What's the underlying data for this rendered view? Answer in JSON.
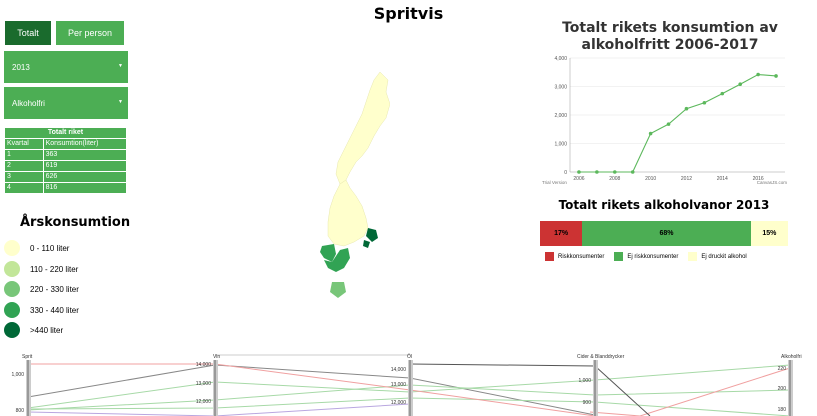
{
  "app_title": "Spritvis",
  "tabs": {
    "total": "Totalt",
    "per_person": "Per person"
  },
  "selects": {
    "year": "2013",
    "type": "Alkoholfri"
  },
  "table": {
    "caption": "Totalt riket",
    "headers": [
      "Kvartal",
      "Konsumtion(liter)"
    ],
    "rows": [
      [
        "1",
        "363"
      ],
      [
        "2",
        "619"
      ],
      [
        "3",
        "626"
      ],
      [
        "4",
        "816"
      ]
    ]
  },
  "legend": {
    "title": "Årskonsumtion",
    "items": [
      {
        "label": "0 - 110 liter",
        "color": "#ffffcc"
      },
      {
        "label": "110 - 220 liter",
        "color": "#c2e699"
      },
      {
        "label": "220 - 330 liter",
        "color": "#78c679"
      },
      {
        "label": "330 - 440 liter",
        "color": "#31a354"
      },
      {
        "label": ">440 liter",
        "color": "#006837"
      }
    ]
  },
  "line_chart": {
    "title_line1": "Totalt rikets konsumtion av",
    "title_line2": "alkoholfritt 2006-2017",
    "watermark_left": "Trial Version",
    "watermark_right": "CanvasJS.com",
    "color": "#5cb85c"
  },
  "bar_chart": {
    "title": "Totalt rikets alkoholvanor 2013",
    "segments": [
      {
        "label": "17%",
        "value": 17,
        "color": "#cc3333"
      },
      {
        "label": "68%",
        "value": 68,
        "color": "#4cae54"
      },
      {
        "label": "15%",
        "value": 15,
        "color": "#ffffcc"
      }
    ],
    "legend": [
      "Riskkonsumenter",
      "Ej riskkonsumenter",
      "Ej druckit alkohol"
    ]
  },
  "parallel": {
    "axes": [
      "Sprit",
      "Vin",
      "Öl",
      "Cider & Blanddrycker",
      "Alkoholfri"
    ],
    "ticks": [
      [
        "1,000",
        "800"
      ],
      [
        "14,000",
        "13,000",
        "12,000"
      ],
      [
        "14,000",
        "13,000",
        "12,000"
      ],
      [
        "1,000",
        "900"
      ],
      [
        "220",
        "200",
        "180"
      ]
    ]
  },
  "chart_data": {
    "type": "line",
    "title": "Totalt rikets konsumtion av alkoholfritt 2006-2017",
    "x": [
      2006,
      2007,
      2008,
      2009,
      2010,
      2011,
      2012,
      2013,
      2014,
      2015,
      2016,
      2017
    ],
    "series": [
      {
        "values": [
          0,
          0,
          0,
          0,
          1350,
          1680,
          2220,
          2430,
          2750,
          3080,
          3420,
          3370
        ]
      }
    ],
    "xticks": [
      "2006",
      "2008",
      "2010",
      "2012",
      "2014",
      "2016"
    ],
    "yticks": [
      "0",
      "1,000",
      "2,000",
      "3,000",
      "4,000"
    ],
    "ylim": [
      0,
      4000
    ],
    "xlim": [
      2005.5,
      2017.5
    ],
    "grid": "horizontal"
  }
}
